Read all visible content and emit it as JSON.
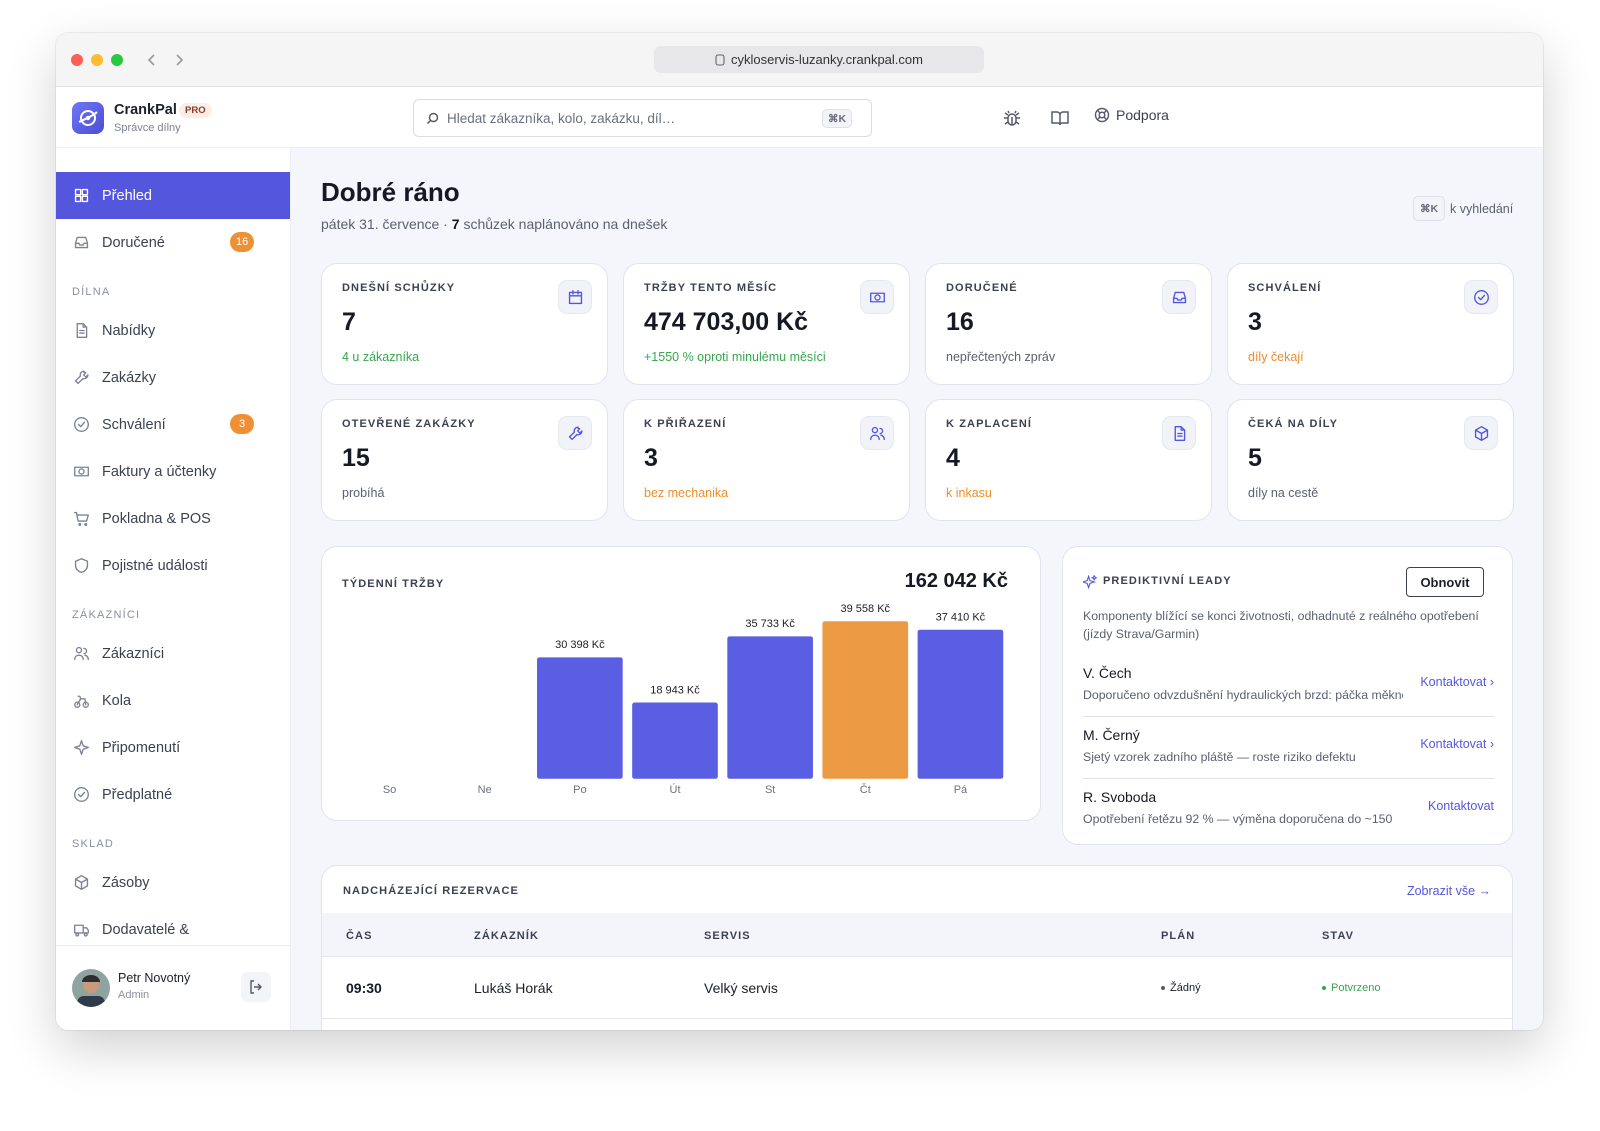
{
  "browser": {
    "url": "cykloservis-luzanky.crankpal.com"
  },
  "header": {
    "brand": "CrankPal",
    "badge": "PRO",
    "role": "Správce dílny",
    "search_placeholder": "Hledat zákazníka, kolo, zakázku, díl…",
    "search_shortcut": "⌘K",
    "support": "Podpora"
  },
  "sidebar": {
    "main_items": [
      {
        "label": "Přehled",
        "active": true
      },
      {
        "label": "Doručené",
        "badge": 16
      }
    ],
    "sections": [
      {
        "title": "DÍLNA",
        "items": [
          {
            "label": "Nabídky"
          },
          {
            "label": "Zakázky"
          },
          {
            "label": "Schválení",
            "badge": 3
          },
          {
            "label": "Faktury a účtenky"
          },
          {
            "label": "Pokladna & POS"
          },
          {
            "label": "Pojistné události"
          }
        ]
      },
      {
        "title": "ZÁKAZNÍCI",
        "items": [
          {
            "label": "Zákazníci"
          },
          {
            "label": "Kola"
          },
          {
            "label": "Připomenutí"
          },
          {
            "label": "Předplatné"
          }
        ]
      },
      {
        "title": "SKLAD",
        "items": [
          {
            "label": "Zásoby"
          },
          {
            "label": "Dodavatelé &"
          }
        ]
      }
    ],
    "user": {
      "name": "Petr Novotný",
      "role": "Admin"
    }
  },
  "greeting": {
    "title": "Dobré ráno",
    "date": "pátek 31. července ·",
    "count": 7,
    "count_text": "schůzek naplánováno na dnešek",
    "shortcut": "⌘K",
    "shortcut_text": "k vyhledání"
  },
  "stats": [
    {
      "label": "DNEŠNÍ SCHŮZKY",
      "value": 7,
      "note": "4 u zákazníka",
      "tone": "green"
    },
    {
      "label": "TRŽBY TENTO MĚSÍC",
      "value": "474 703,00 Kč",
      "note": "+1550 % oproti minulému měsíci",
      "tone": "green"
    },
    {
      "label": "DORUČENÉ",
      "value": 16,
      "note": "nepřečtených zpráv",
      "tone": "muted"
    },
    {
      "label": "SCHVÁLENÍ",
      "value": 3,
      "note": "díly čekají",
      "tone": "orange"
    },
    {
      "label": "OTEVŘENÉ ZAKÁZKY",
      "value": 15,
      "note": "probíhá",
      "tone": "muted"
    },
    {
      "label": "K PŘIŘAZENÍ",
      "value": 3,
      "note": "bez mechanika",
      "tone": "orange"
    },
    {
      "label": "K ZAPLACENÍ",
      "value": 4,
      "note": "k inkasu",
      "tone": "orange"
    },
    {
      "label": "ČEKÁ NA DÍLY",
      "value": 5,
      "note": "díly na cestě",
      "tone": "muted"
    }
  ],
  "chart_data": {
    "type": "bar",
    "title": "TÝDENNÍ TRŽBY",
    "total": "162 042 Kč",
    "categories": [
      "So",
      "Ne",
      "Po",
      "Út",
      "St",
      "Čt",
      "Pá"
    ],
    "values": [
      0,
      0,
      30398,
      18943,
      35733,
      39558,
      37410
    ],
    "value_labels": [
      null,
      null,
      "30 398 Kč",
      "18 943 Kč",
      "35 733 Kč",
      "39 558 Kč",
      "37 410 Kč"
    ],
    "colors": [
      "#5a5ee2",
      "#5a5ee2",
      "#5a5ee2",
      "#5a5ee2",
      "#5a5ee2",
      "#eb9a43",
      "#5a5ee2"
    ]
  },
  "leads": {
    "title": "PREDIKTIVNÍ LEADY",
    "button": "Obnovit",
    "description": "Komponenty blížící se konci životnosti, odhadnuté z reálného opotřebení (jízdy Strava/Garmin)",
    "items": [
      {
        "name": "V. Čech",
        "note": "Doporučeno odvzdušnění hydraulických brzd: páčka měkne",
        "action": "Kontaktovat ›"
      },
      {
        "name": "M. Černý",
        "note": "Sjetý vzorek zadního pláště — roste riziko defektu",
        "action": "Kontaktovat ›"
      },
      {
        "name": "R. Svoboda",
        "note": "Opotřebení řetězu 92 % — výměna doporučena do ~150",
        "action": "Kontaktovat"
      }
    ]
  },
  "reservations": {
    "title": "NADCHÁZEJÍCÍ REZERVACE",
    "link": "Zobrazit vše →",
    "columns": [
      "ČAS",
      "ZÁKAZNÍK",
      "SERVIS",
      "PLÁN",
      "STAV"
    ],
    "rows": [
      [
        "09:30",
        "Lukáš Horák",
        "Velký servis",
        "Žádný",
        "Potvrzeno"
      ]
    ]
  }
}
